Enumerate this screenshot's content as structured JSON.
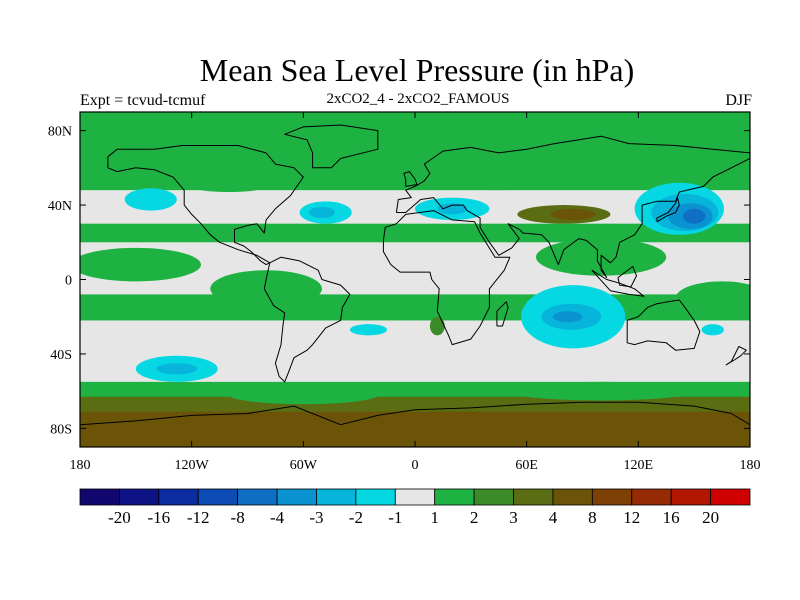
{
  "title": "Mean Sea Level Pressure (in hPa)",
  "expt_label": "Expt = tcvud-tcmuf",
  "subtitle": "2xCO2_4 - 2xCO2_FAMOUS",
  "season": "DJF",
  "map": {
    "projection": "equirectangular",
    "lon_range": [
      -180,
      180
    ],
    "lat_range": [
      -90,
      90
    ],
    "lon_ticks": [
      {
        "value": -180,
        "label": "180"
      },
      {
        "value": -120,
        "label": "120W"
      },
      {
        "value": -60,
        "label": "60W"
      },
      {
        "value": 0,
        "label": "0"
      },
      {
        "value": 60,
        "label": "60E"
      },
      {
        "value": 120,
        "label": "120E"
      },
      {
        "value": 180,
        "label": "180"
      }
    ],
    "lat_ticks": [
      {
        "value": 80,
        "label": "80N"
      },
      {
        "value": 40,
        "label": "40N"
      },
      {
        "value": 0,
        "label": "0"
      },
      {
        "value": -40,
        "label": "40S"
      },
      {
        "value": -80,
        "label": "80S"
      }
    ],
    "features": [
      {
        "name": "north-pacific-low-cyan",
        "value": -2,
        "lon": -142,
        "lat": 43,
        "rlon": 14,
        "rlat": 6
      },
      {
        "name": "north-atlantic-low-cyan",
        "value": -2,
        "lon": -48,
        "lat": 36,
        "rlon": 14,
        "rlat": 6
      },
      {
        "name": "north-atlantic-low-core",
        "value": -3,
        "lon": -50,
        "lat": 36,
        "rlon": 7,
        "rlat": 3
      },
      {
        "name": "mediterranean-low-cyan",
        "value": -2,
        "lon": 20,
        "lat": 38,
        "rlon": 20,
        "rlat": 6
      },
      {
        "name": "mediterranean-low-core",
        "value": -3,
        "lon": 20,
        "lat": 38,
        "rlon": 8,
        "rlat": 3
      },
      {
        "name": "west-pacific-low-cyan",
        "value": -2,
        "lon": 142,
        "lat": 38,
        "rlon": 24,
        "rlat": 14
      },
      {
        "name": "west-pacific-low-mid",
        "value": -3,
        "lon": 145,
        "lat": 36,
        "rlon": 18,
        "rlat": 10
      },
      {
        "name": "west-pacific-low-strong",
        "value": -4,
        "lon": 148,
        "lat": 34,
        "rlon": 12,
        "rlat": 7
      },
      {
        "name": "west-pacific-low-core",
        "value": -8,
        "lon": 150,
        "lat": 34,
        "rlon": 6,
        "rlat": 4
      },
      {
        "name": "south-indian-low-cyan",
        "value": -2,
        "lon": 85,
        "lat": -20,
        "rlon": 28,
        "rlat": 17
      },
      {
        "name": "south-indian-low-mid",
        "value": -3,
        "lon": 84,
        "lat": -20,
        "rlon": 16,
        "rlat": 7
      },
      {
        "name": "south-indian-low-core",
        "value": -4,
        "lon": 82,
        "lat": -20,
        "rlon": 8,
        "rlat": 3
      },
      {
        "name": "south-pacific-low-cyan",
        "value": -2,
        "lon": -128,
        "lat": -48,
        "rlon": 22,
        "rlat": 7
      },
      {
        "name": "south-pacific-low-core",
        "value": -3,
        "lon": -128,
        "lat": -48,
        "rlon": 11,
        "rlat": 3
      },
      {
        "name": "south-atlantic-low",
        "value": -2,
        "lon": -25,
        "lat": -27,
        "rlon": 10,
        "rlat": 3
      },
      {
        "name": "australia-east-low",
        "value": -2,
        "lon": 160,
        "lat": -27,
        "rlon": 6,
        "rlat": 3
      },
      {
        "name": "south-atlantic-high",
        "value": 2,
        "lon": 12,
        "lat": -25,
        "rlon": 4,
        "rlat": 5
      },
      {
        "name": "asia-high-olive",
        "value": 3,
        "lon": 80,
        "lat": 35,
        "rlon": 25,
        "rlat": 5
      },
      {
        "name": "asia-high-brown",
        "value": 4,
        "lon": 85,
        "lat": 35,
        "rlon": 12,
        "rlat": 3
      }
    ]
  },
  "colorbar": {
    "colors": [
      "#12066f",
      "#0d1385",
      "#0a2c9f",
      "#0d4cb4",
      "#0e6fc4",
      "#0a93d0",
      "#07b5db",
      "#05d8e3",
      "#e6e6e6",
      "#1eb242",
      "#3c8b28",
      "#5b6d12",
      "#6b5308",
      "#7f4005",
      "#962a04",
      "#b21702",
      "#d10000"
    ],
    "labels": [
      "-20",
      "-16",
      "-12",
      "-8",
      "-4",
      "-3",
      "-2",
      "-1",
      "1",
      "2",
      "3",
      "4",
      "8",
      "12",
      "16",
      "20"
    ]
  }
}
